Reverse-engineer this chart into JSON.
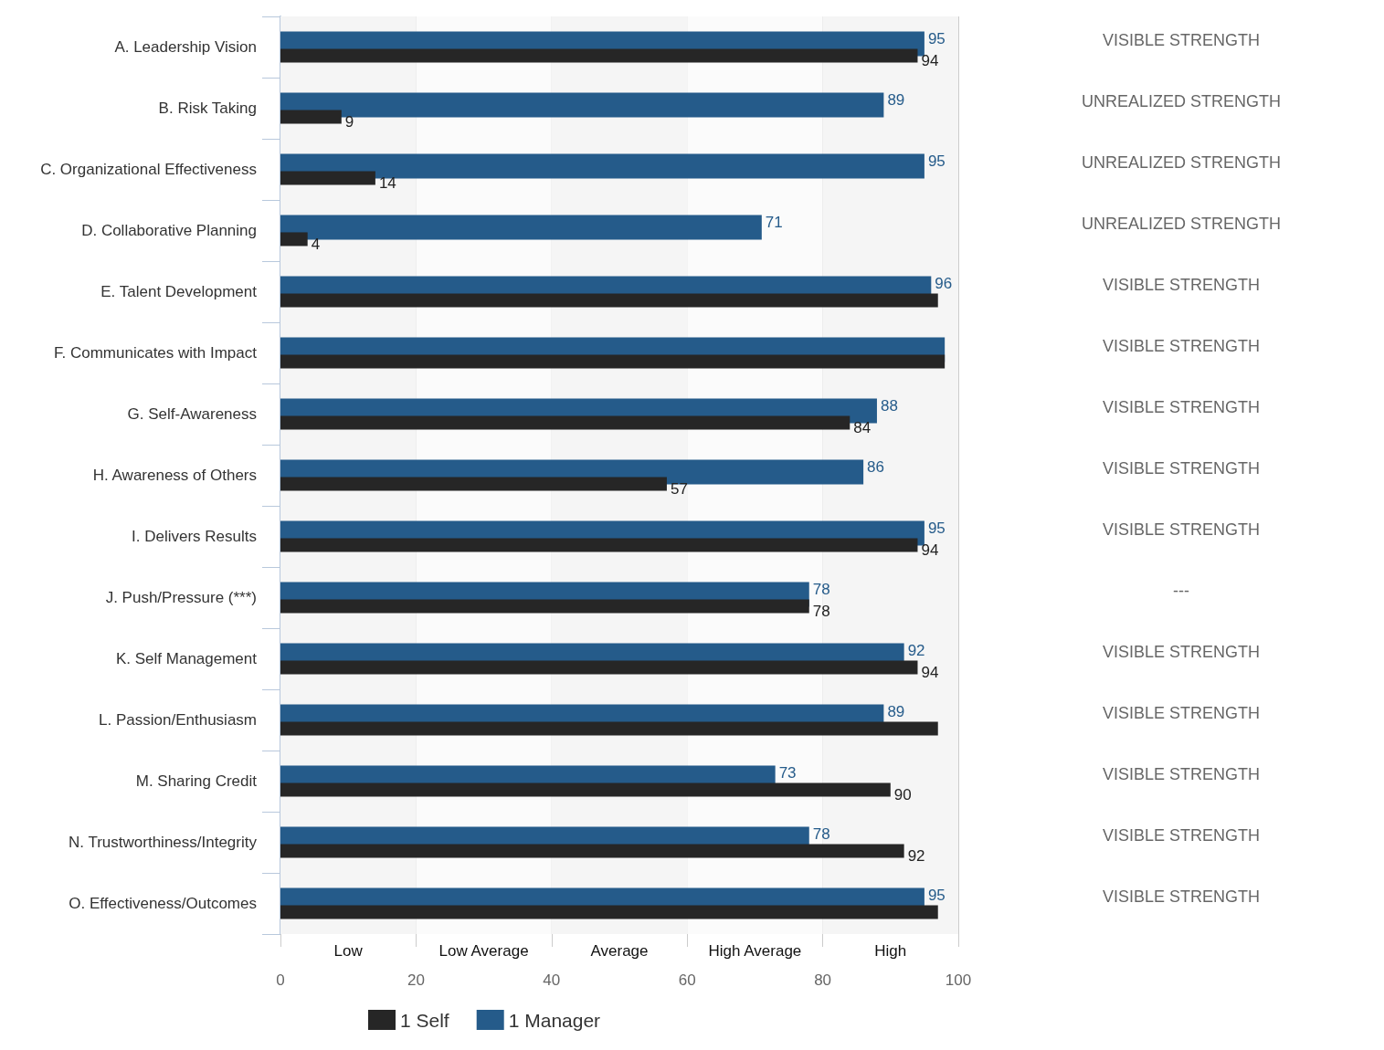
{
  "chart_data": {
    "type": "bar",
    "orientation": "horizontal",
    "categories": [
      "A. Leadership Vision",
      "B. Risk Taking",
      "C. Organizational Effectiveness",
      "D. Collaborative Planning",
      "E. Talent Development",
      "F. Communicates with Impact",
      "G. Self-Awareness",
      "H. Awareness of Others",
      "I. Delivers Results",
      "J. Push/Pressure (***)",
      "K. Self Management",
      "L. Passion/Enthusiasm",
      "M. Sharing Credit",
      "N. Trustworthiness/Integrity",
      "O. Effectiveness/Outcomes"
    ],
    "series": [
      {
        "name": "1 Self",
        "color": "#262626",
        "values": [
          94,
          9,
          14,
          4,
          97,
          98,
          84,
          57,
          94,
          78,
          94,
          97,
          90,
          92,
          97
        ],
        "value_labels": [
          "94",
          "9",
          "14",
          "4",
          null,
          null,
          "84",
          "57",
          "94",
          "78",
          "94",
          null,
          "90",
          "92",
          null
        ]
      },
      {
        "name": "1 Manager",
        "color": "#255b8a",
        "values": [
          95,
          89,
          95,
          71,
          96,
          98,
          88,
          86,
          95,
          78,
          92,
          89,
          73,
          78,
          95
        ],
        "value_labels": [
          "95",
          "89",
          "95",
          "71",
          "96",
          null,
          "88",
          "86",
          "95",
          "78",
          "92",
          "89",
          "73",
          "78",
          "95"
        ]
      }
    ],
    "xlim": [
      0,
      100
    ],
    "xticks": [
      0,
      20,
      40,
      60,
      80,
      100
    ],
    "grid": "x",
    "legend": "bottom",
    "bands": [
      {
        "axis": "x",
        "from": 0,
        "to": 20,
        "label": "Low",
        "color": "#f5f5f5"
      },
      {
        "axis": "x",
        "from": 20,
        "to": 40,
        "label": "Low Average",
        "color": "#fbfbfb"
      },
      {
        "axis": "x",
        "from": 40,
        "to": 60,
        "label": "Average",
        "color": "#f5f5f5"
      },
      {
        "axis": "x",
        "from": 60,
        "to": 80,
        "label": "High Average",
        "color": "#fbfbfb"
      },
      {
        "axis": "x",
        "from": 80,
        "to": 100,
        "label": "High",
        "color": "#f5f5f5"
      }
    ],
    "annotations": [
      "VISIBLE STRENGTH",
      "UNREALIZED STRENGTH",
      "UNREALIZED STRENGTH",
      "UNREALIZED STRENGTH",
      "VISIBLE STRENGTH",
      "VISIBLE STRENGTH",
      "VISIBLE STRENGTH",
      "VISIBLE STRENGTH",
      "VISIBLE STRENGTH",
      "---",
      "VISIBLE STRENGTH",
      "VISIBLE STRENGTH",
      "VISIBLE STRENGTH",
      "VISIBLE STRENGTH",
      "VISIBLE STRENGTH"
    ]
  }
}
